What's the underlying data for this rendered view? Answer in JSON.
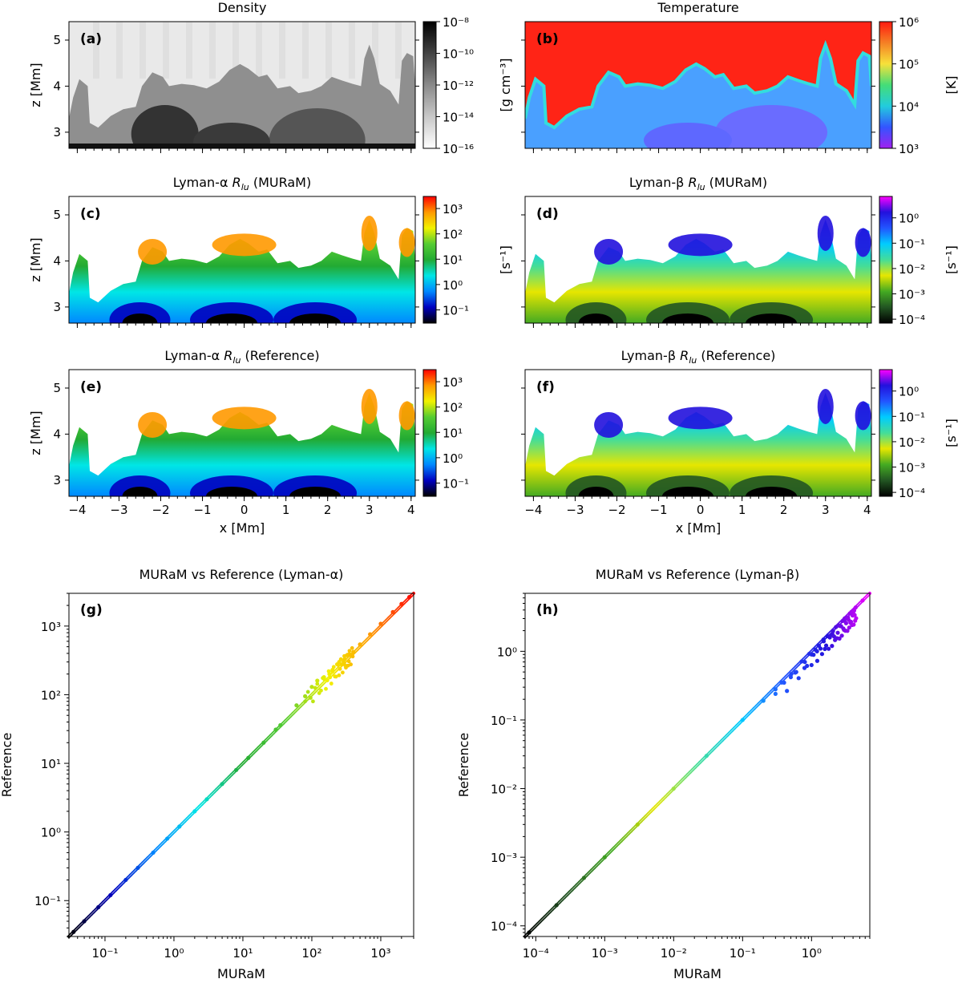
{
  "chart_data": [
    {
      "type": "heatmap",
      "panel": "(a)",
      "title": "Density",
      "xlabel": "",
      "ylabel": "z [Mm]",
      "xlim": [
        -4.2,
        4.1
      ],
      "ylim": [
        2.65,
        5.4
      ],
      "yticks": [
        "3",
        "4",
        "5"
      ],
      "colorbar": {
        "label": "[g cm⁻³]",
        "scale": "log",
        "range": [
          1e-16,
          1e-08
        ],
        "ticks": [
          "10⁻⁸",
          "10⁻¹⁰",
          "10⁻¹²",
          "10⁻¹⁴",
          "10⁻¹⁶"
        ],
        "colormap": [
          "#ffffff",
          "#c8c8c8",
          "#8a8a8a",
          "#444444",
          "#000000"
        ]
      }
    },
    {
      "type": "heatmap",
      "panel": "(b)",
      "title": "Temperature",
      "xlabel": "",
      "ylabel": "",
      "xlim": [
        -4.2,
        4.1
      ],
      "ylim": [
        2.65,
        5.4
      ],
      "colorbar": {
        "label": "[K]",
        "scale": "log",
        "range": [
          1000.0,
          1000000.0
        ],
        "ticks": [
          "10⁶",
          "10⁵",
          "10⁴",
          "10³"
        ],
        "colormap": [
          "#a020f0",
          "#3355ff",
          "#22ccdd",
          "#44dd77",
          "#f7e13a",
          "#f58025",
          "#ff1a10"
        ]
      }
    },
    {
      "type": "heatmap",
      "panel": "(c)",
      "title": "Lyman-α R_lu (MURaM)",
      "xlabel": "",
      "ylabel": "z [Mm]",
      "xlim": [
        -4.2,
        4.1
      ],
      "ylim": [
        2.65,
        5.4
      ],
      "yticks": [
        "3",
        "4",
        "5"
      ],
      "colorbar": {
        "label": "[s⁻¹]",
        "scale": "log",
        "range": [
          0.03,
          3000
        ],
        "ticks": [
          "10³",
          "10²",
          "10¹",
          "10⁰",
          "10⁻¹"
        ],
        "colormap": [
          "#000000",
          "#0000c0",
          "#0088ff",
          "#00e6e6",
          "#22aa33",
          "#55cc33",
          "#f2f200",
          "#ff9900",
          "#ff0000"
        ]
      }
    },
    {
      "type": "heatmap",
      "panel": "(d)",
      "title": "Lyman-β R_lu (MURaM)",
      "xlabel": "",
      "ylabel": "",
      "xlim": [
        -4.2,
        4.1
      ],
      "ylim": [
        2.65,
        5.4
      ],
      "colorbar": {
        "label": "[s⁻¹]",
        "scale": "log",
        "range": [
          7e-05,
          7
        ],
        "ticks": [
          "10⁰",
          "10⁻¹",
          "10⁻²",
          "10⁻³",
          "10⁻⁴"
        ],
        "colormap": [
          "#000000",
          "#225522",
          "#44aa22",
          "#e6e600",
          "#44dd99",
          "#00ccff",
          "#2255ff",
          "#2211dd",
          "#ff00ff"
        ]
      }
    },
    {
      "type": "heatmap",
      "panel": "(e)",
      "title": "Lyman-α R_lu (Reference)",
      "xlabel": "x [Mm]",
      "ylabel": "z [Mm]",
      "xlim": [
        -4.2,
        4.1
      ],
      "ylim": [
        2.65,
        5.4
      ],
      "xticks": [
        "−4",
        "−3",
        "−2",
        "−1",
        "0",
        "1",
        "2",
        "3",
        "4"
      ],
      "yticks": [
        "3",
        "4",
        "5"
      ],
      "colorbar": {
        "label": "",
        "scale": "log",
        "range": [
          0.03,
          3000
        ],
        "ticks": [
          "10³",
          "10²",
          "10¹",
          "10⁰",
          "10⁻¹"
        ],
        "colormap": [
          "#000000",
          "#0000c0",
          "#0088ff",
          "#00e6e6",
          "#22aa33",
          "#55cc33",
          "#f2f200",
          "#ff9900",
          "#ff0000"
        ]
      }
    },
    {
      "type": "heatmap",
      "panel": "(f)",
      "title": "Lyman-β R_lu (Reference)",
      "xlabel": "x [Mm]",
      "ylabel": "",
      "xlim": [
        -4.2,
        4.1
      ],
      "ylim": [
        2.65,
        5.4
      ],
      "xticks": [
        "−4",
        "−3",
        "−2",
        "−1",
        "0",
        "1",
        "2",
        "3",
        "4"
      ],
      "colorbar": {
        "label": "[s⁻¹]",
        "scale": "log",
        "range": [
          7e-05,
          7
        ],
        "ticks": [
          "10⁰",
          "10⁻¹",
          "10⁻²",
          "10⁻³",
          "10⁻⁴"
        ],
        "colormap": [
          "#000000",
          "#225522",
          "#44aa22",
          "#e6e600",
          "#44dd99",
          "#00ccff",
          "#2255ff",
          "#2211dd",
          "#ff00ff"
        ]
      }
    },
    {
      "type": "scatter",
      "panel": "(g)",
      "title": "MURaM vs Reference (Lyman-α)",
      "xlabel": "MURaM",
      "ylabel": "Reference",
      "xscale": "log",
      "yscale": "log",
      "xlim": [
        0.03,
        3000
      ],
      "ylim": [
        0.03,
        3000
      ],
      "xticks": [
        "10⁻¹",
        "10⁰",
        "10¹",
        "10²",
        "10³"
      ],
      "yticks": [
        "10⁻¹",
        "10⁰",
        "10¹",
        "10²",
        "10³"
      ],
      "identity_line": true,
      "points": [
        [
          0.035,
          0.035
        ],
        [
          0.05,
          0.05
        ],
        [
          0.08,
          0.08
        ],
        [
          0.12,
          0.12
        ],
        [
          0.2,
          0.2
        ],
        [
          0.3,
          0.3
        ],
        [
          0.5,
          0.5
        ],
        [
          0.8,
          0.8
        ],
        [
          1.2,
          1.2
        ],
        [
          2,
          2
        ],
        [
          3,
          3
        ],
        [
          5,
          5
        ],
        [
          8,
          8
        ],
        [
          12,
          12
        ],
        [
          20,
          20
        ],
        [
          30,
          31
        ],
        [
          35,
          36
        ],
        [
          60,
          70
        ],
        [
          80,
          95
        ],
        [
          100,
          130
        ],
        [
          120,
          160
        ],
        [
          150,
          180
        ],
        [
          180,
          200
        ],
        [
          200,
          230
        ],
        [
          250,
          300
        ],
        [
          300,
          330
        ],
        [
          350,
          390
        ],
        [
          400,
          420
        ],
        [
          500,
          540
        ],
        [
          700,
          760
        ],
        [
          1000,
          1080
        ],
        [
          1500,
          1600
        ],
        [
          2000,
          2100
        ],
        [
          2600,
          2650
        ]
      ]
    },
    {
      "type": "scatter",
      "panel": "(h)",
      "title": "MURaM vs Reference (Lyman-β)",
      "xlabel": "MURaM",
      "ylabel": "Reference",
      "xscale": "log",
      "yscale": "log",
      "xlim": [
        7e-05,
        7
      ],
      "ylim": [
        7e-05,
        7
      ],
      "xticks": [
        "10⁻⁴",
        "10⁻³",
        "10⁻²",
        "10⁻¹",
        "10⁰"
      ],
      "yticks": [
        "10⁻⁴",
        "10⁻³",
        "10⁻²",
        "10⁻¹",
        "10⁰"
      ],
      "identity_line": true,
      "points": [
        [
          8e-05,
          8e-05
        ],
        [
          0.0002,
          0.0002
        ],
        [
          0.0005,
          0.0005
        ],
        [
          0.001,
          0.001
        ],
        [
          0.003,
          0.003
        ],
        [
          0.01,
          0.01
        ],
        [
          0.03,
          0.03
        ],
        [
          0.1,
          0.1
        ],
        [
          0.2,
          0.19
        ],
        [
          0.3,
          0.28
        ],
        [
          0.4,
          0.35
        ],
        [
          0.5,
          0.42
        ],
        [
          0.6,
          0.5
        ],
        [
          0.8,
          0.7
        ],
        [
          1,
          0.9
        ],
        [
          1.2,
          1.0
        ],
        [
          1.5,
          1.4
        ],
        [
          2,
          1.8
        ],
        [
          3,
          2.8
        ],
        [
          4,
          3.9
        ],
        [
          5.5,
          5.5
        ]
      ]
    }
  ]
}
